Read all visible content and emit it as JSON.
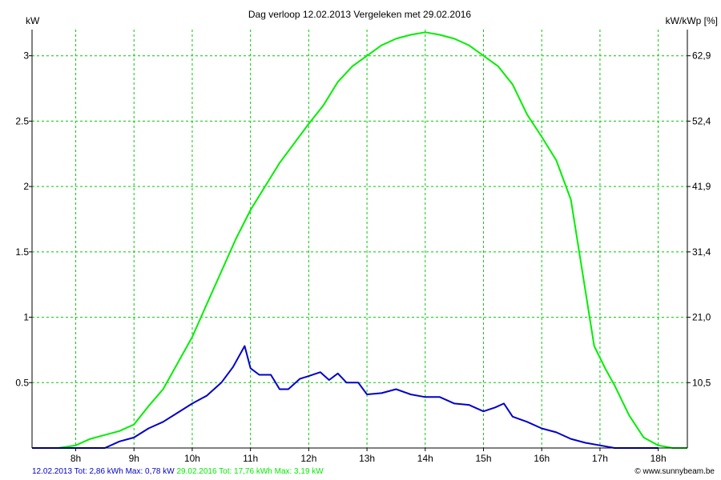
{
  "colors": {
    "grid": "#00cc00",
    "series_2013": "#0000cc",
    "series_2016": "#00ee00",
    "axis": "#000000"
  },
  "chart_data": {
    "type": "line",
    "title": "Dag  verloop 12.02.2013   Vergeleken met 29.02.2016",
    "ylabel_left": "kW",
    "ylabel_right": "kW/kWp [%]",
    "ylim": [
      0,
      3.2
    ],
    "xlim": [
      7.25,
      18.5
    ],
    "grid": true,
    "x_ticks": [
      {
        "value": 8,
        "label": "8h"
      },
      {
        "value": 9,
        "label": "9h"
      },
      {
        "value": 10,
        "label": "10h"
      },
      {
        "value": 11,
        "label": "11h"
      },
      {
        "value": 12,
        "label": "12h"
      },
      {
        "value": 13,
        "label": "13h"
      },
      {
        "value": 14,
        "label": "14h"
      },
      {
        "value": 15,
        "label": "15h"
      },
      {
        "value": 16,
        "label": "16h"
      },
      {
        "value": 17,
        "label": "17h"
      },
      {
        "value": 18,
        "label": "18h"
      }
    ],
    "y_ticks_left": [
      {
        "value": 0.5,
        "label": "0.5"
      },
      {
        "value": 1,
        "label": "1"
      },
      {
        "value": 1.5,
        "label": "1.5"
      },
      {
        "value": 2,
        "label": "2"
      },
      {
        "value": 2.5,
        "label": "2.5"
      },
      {
        "value": 3,
        "label": "3"
      }
    ],
    "y_ticks_right": [
      {
        "value": 0.5,
        "label": "10,5"
      },
      {
        "value": 1,
        "label": "21,0"
      },
      {
        "value": 1.5,
        "label": "31,4"
      },
      {
        "value": 2,
        "label": "41,9"
      },
      {
        "value": 2.5,
        "label": "52,4"
      },
      {
        "value": 3,
        "label": "62,9"
      }
    ],
    "series": [
      {
        "key": "d2016",
        "color_key": "series_2016",
        "x": [
          7.25,
          7.7,
          8.0,
          8.25,
          8.5,
          8.75,
          9.0,
          9.25,
          9.5,
          9.75,
          10.0,
          10.25,
          10.5,
          10.75,
          11.0,
          11.25,
          11.5,
          11.75,
          12.0,
          12.25,
          12.5,
          12.75,
          13.0,
          13.25,
          13.5,
          13.75,
          14.0,
          14.25,
          14.5,
          14.75,
          15.0,
          15.25,
          15.5,
          15.75,
          16.0,
          16.25,
          16.5,
          16.75,
          16.9,
          17.1,
          17.25,
          17.5,
          17.75,
          18.0,
          18.25,
          18.5
        ],
        "y": [
          0.0,
          0.0,
          0.02,
          0.07,
          0.1,
          0.13,
          0.18,
          0.32,
          0.45,
          0.65,
          0.85,
          1.1,
          1.35,
          1.6,
          1.82,
          2.0,
          2.18,
          2.33,
          2.48,
          2.62,
          2.8,
          2.92,
          3.0,
          3.08,
          3.13,
          3.16,
          3.18,
          3.16,
          3.13,
          3.08,
          3.0,
          2.92,
          2.78,
          2.55,
          2.38,
          2.2,
          1.9,
          1.2,
          0.78,
          0.6,
          0.48,
          0.25,
          0.08,
          0.02,
          0.0,
          0.0
        ]
      },
      {
        "key": "d2013",
        "color_key": "series_2013",
        "x": [
          7.25,
          8.0,
          8.5,
          8.75,
          9.0,
          9.25,
          9.5,
          9.75,
          10.0,
          10.25,
          10.5,
          10.7,
          10.9,
          11.0,
          11.15,
          11.35,
          11.5,
          11.65,
          11.85,
          12.0,
          12.2,
          12.35,
          12.5,
          12.65,
          12.85,
          13.0,
          13.25,
          13.5,
          13.75,
          14.0,
          14.25,
          14.5,
          14.75,
          15.0,
          15.2,
          15.35,
          15.5,
          15.75,
          16.0,
          16.25,
          16.5,
          16.75,
          17.0,
          17.25,
          17.5,
          18.0
        ],
        "y": [
          0.0,
          0.0,
          0.0,
          0.05,
          0.08,
          0.15,
          0.2,
          0.27,
          0.34,
          0.4,
          0.5,
          0.62,
          0.78,
          0.61,
          0.56,
          0.56,
          0.45,
          0.45,
          0.53,
          0.55,
          0.58,
          0.52,
          0.57,
          0.5,
          0.5,
          0.41,
          0.42,
          0.45,
          0.41,
          0.39,
          0.39,
          0.34,
          0.33,
          0.28,
          0.31,
          0.34,
          0.24,
          0.2,
          0.15,
          0.12,
          0.07,
          0.04,
          0.02,
          0.0,
          0.0,
          0.0
        ]
      }
    ]
  },
  "legend": {
    "entry_2013": "12.02.2013 Tot: 2,86 kWh Max: 0,78 kW",
    "entry_2016": "29.02.2016 Tot: 17,76 kWh Max: 3,19 kW"
  },
  "credit": "© www.sunnybeam.be"
}
